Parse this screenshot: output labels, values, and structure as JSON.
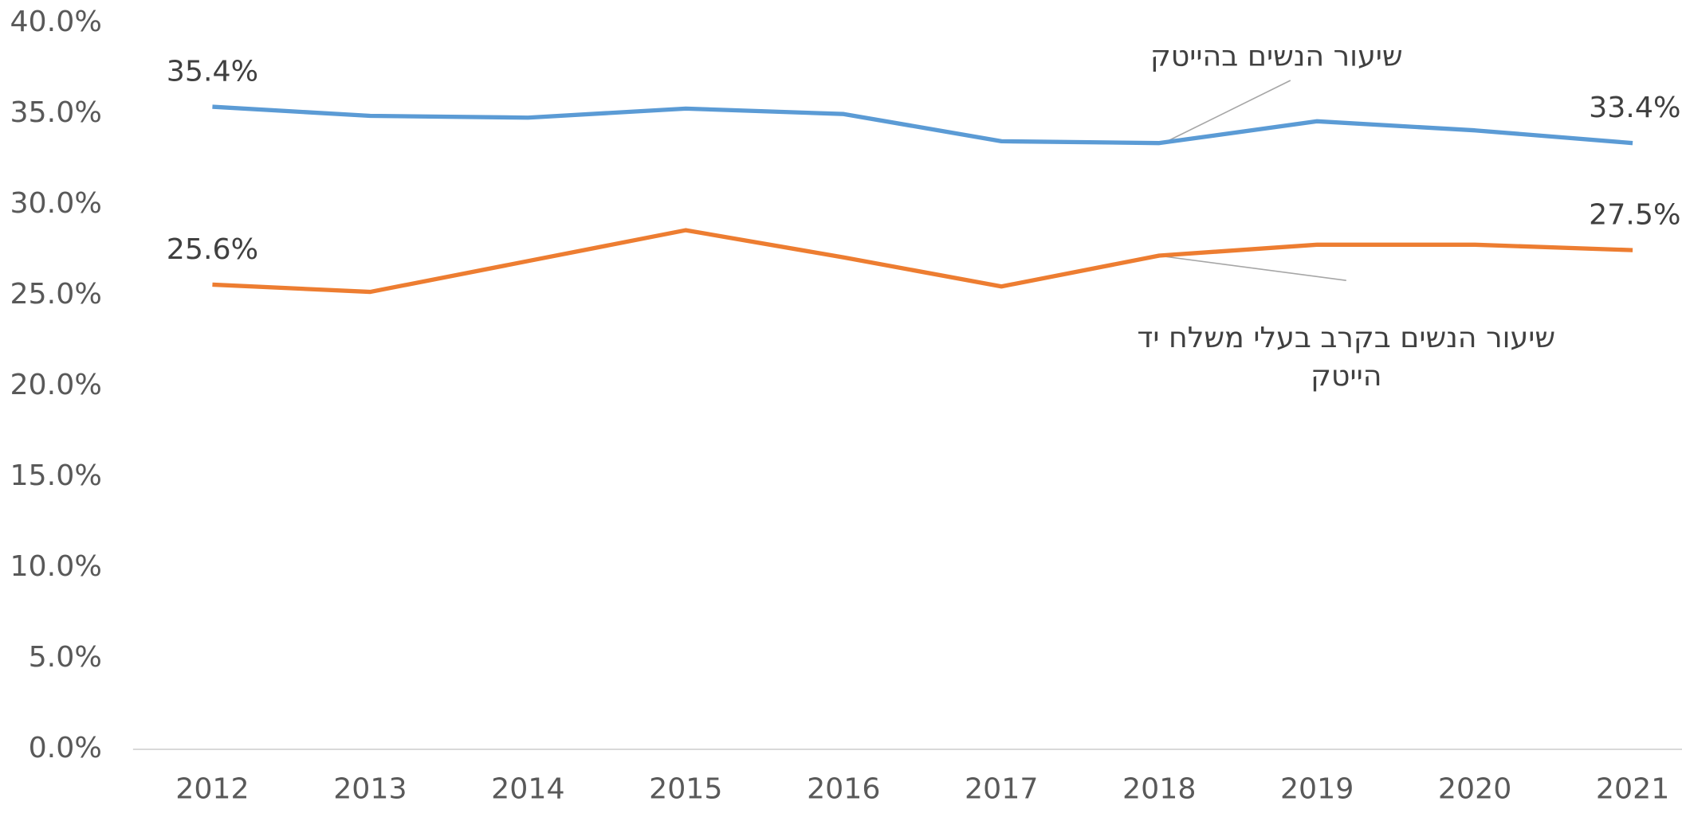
{
  "chart_data": {
    "type": "line",
    "categories": [
      "2012",
      "2013",
      "2014",
      "2015",
      "2016",
      "2017",
      "2018",
      "2019",
      "2020",
      "2021"
    ],
    "series": [
      {
        "name": "שיעור הנשים בהייטק",
        "color": "#5b9bd5",
        "values": [
          35.4,
          34.9,
          34.8,
          35.3,
          35.0,
          33.5,
          33.4,
          34.6,
          34.1,
          33.4
        ],
        "value_labels": [
          "35.4%",
          null,
          null,
          null,
          null,
          null,
          null,
          null,
          null,
          "33.4%"
        ]
      },
      {
        "name": "שיעור הנשים בקרב בעלי משלח יד הייטק",
        "color": "#ed7d31",
        "values": [
          25.6,
          25.2,
          26.9,
          28.6,
          27.1,
          25.5,
          27.2,
          27.8,
          27.8,
          27.5
        ],
        "value_labels": [
          "25.6%",
          null,
          null,
          null,
          null,
          null,
          null,
          null,
          null,
          "27.5%"
        ]
      }
    ],
    "ylim": [
      0,
      40
    ],
    "yticks": [
      {
        "value": 0,
        "label": "0.0%"
      },
      {
        "value": 5,
        "label": "5.0%"
      },
      {
        "value": 10,
        "label": "10.0%"
      },
      {
        "value": 15,
        "label": "15.0%"
      },
      {
        "value": 20,
        "label": "20.0%"
      },
      {
        "value": 25,
        "label": "25.0%"
      },
      {
        "value": 30,
        "label": "30.0%"
      },
      {
        "value": 35,
        "label": "35.0%"
      },
      {
        "value": 40,
        "label": "40.0%"
      }
    ],
    "grid": false
  }
}
